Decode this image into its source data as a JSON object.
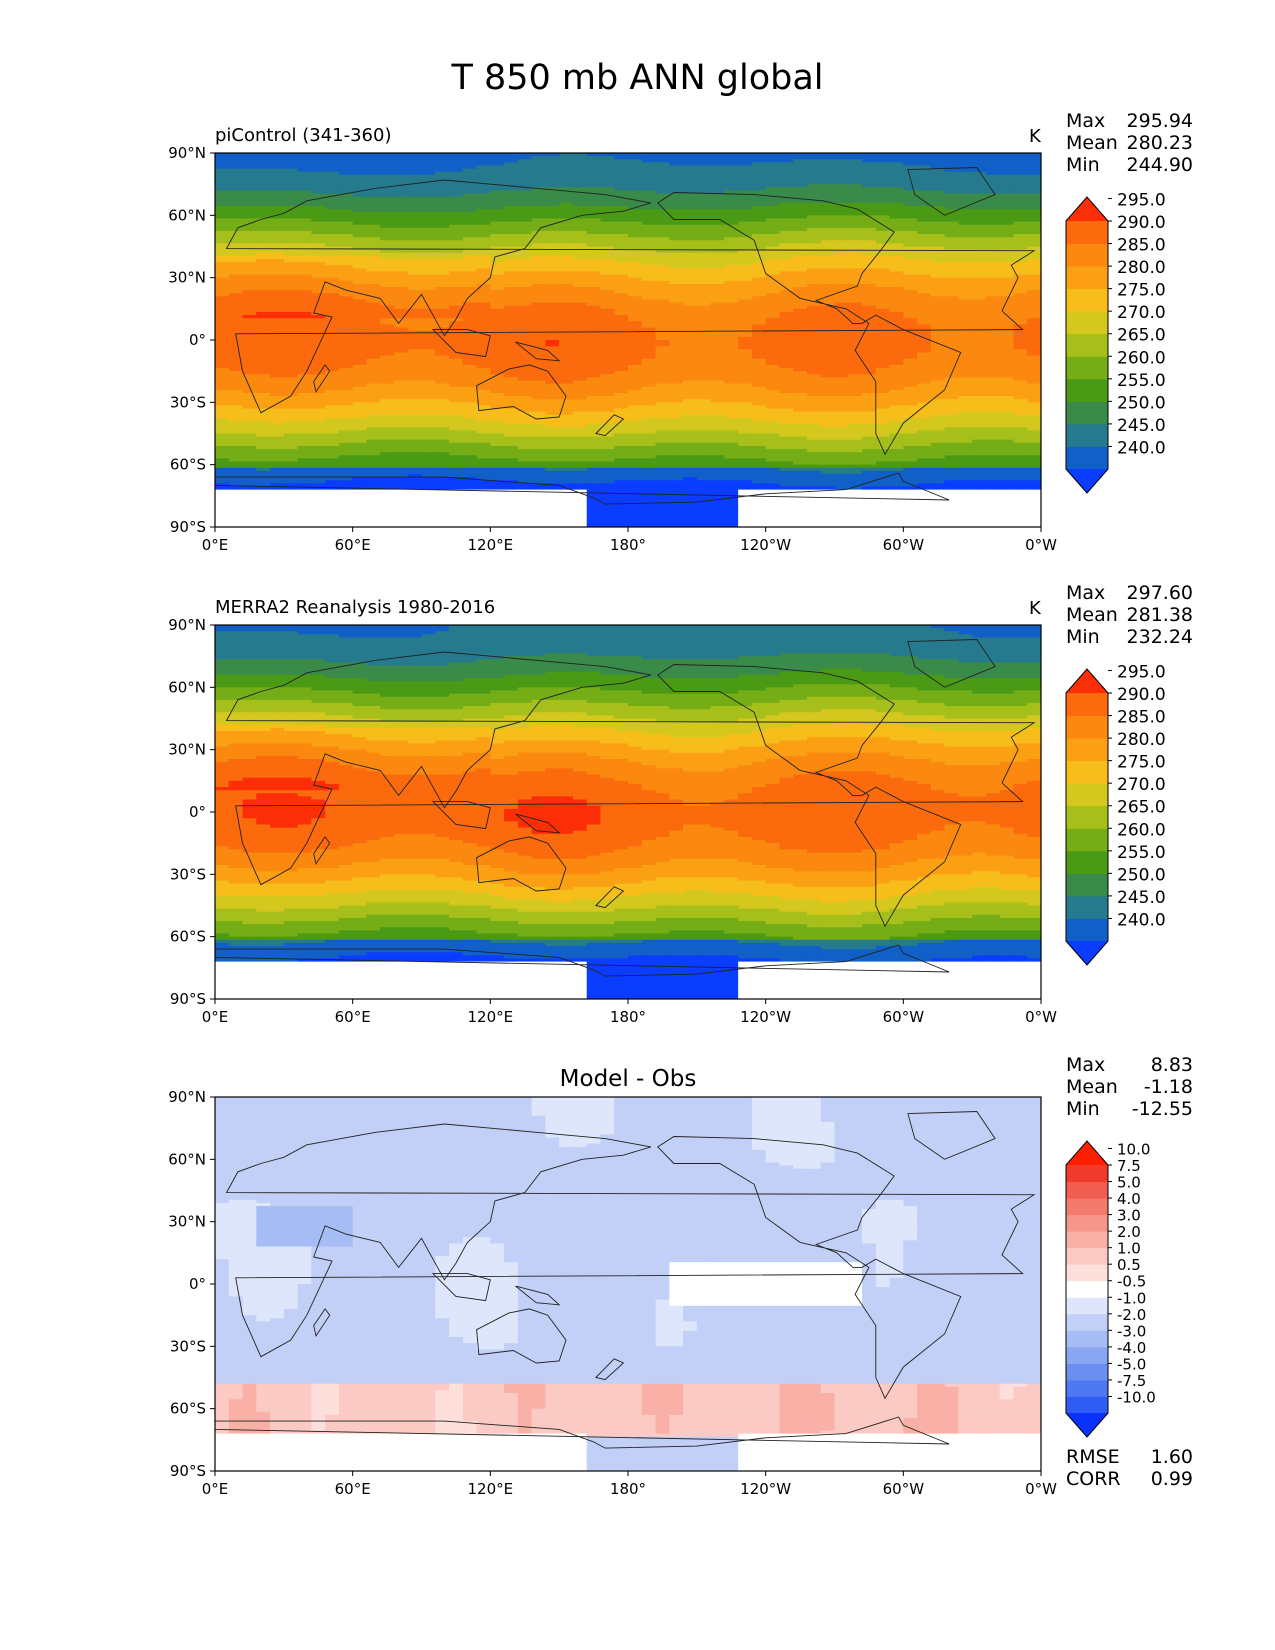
{
  "figure": {
    "title": "T 850 mb ANN global"
  },
  "axes": {
    "x_ticks": [
      "0°E",
      "60°E",
      "120°E",
      "180°",
      "120°W",
      "60°W",
      "0°W"
    ],
    "y_ticks": [
      "90°N",
      "60°N",
      "30°N",
      "0°",
      "30°S",
      "60°S",
      "90°S"
    ]
  },
  "chart_data": [
    {
      "type": "heatmap",
      "title": "piControl (341-360)",
      "units": "K",
      "stats": {
        "max_label": "Max",
        "max": "295.94",
        "mean_label": "Mean",
        "mean": "280.23",
        "min_label": "Min",
        "min": "244.90"
      },
      "colorbar_levels": [
        "240.0",
        "245.0",
        "250.0",
        "255.0",
        "260.0",
        "265.0",
        "270.0",
        "275.0",
        "280.0",
        "285.0",
        "290.0",
        "295.0"
      ],
      "colorbar_colors": [
        "#0a3dff",
        "#1060c8",
        "#267a8e",
        "#3a8a4a",
        "#4a9a16",
        "#74ad16",
        "#a6bf1a",
        "#d4c81f",
        "#f7be1b",
        "#fba012",
        "#fb880f",
        "#fb6a0c",
        "#fb2e08"
      ],
      "xlim": [
        0,
        360
      ],
      "ylim": [
        -90,
        90
      ]
    },
    {
      "type": "heatmap",
      "title": "MERRA2 Reanalysis 1980-2016",
      "units": "K",
      "stats": {
        "max_label": "Max",
        "max": "297.60",
        "mean_label": "Mean",
        "mean": "281.38",
        "min_label": "Min",
        "min": "232.24"
      },
      "colorbar_levels": [
        "240.0",
        "245.0",
        "250.0",
        "255.0",
        "260.0",
        "265.0",
        "270.0",
        "275.0",
        "280.0",
        "285.0",
        "290.0",
        "295.0"
      ],
      "colorbar_colors": [
        "#0a3dff",
        "#1060c8",
        "#267a8e",
        "#3a8a4a",
        "#4a9a16",
        "#74ad16",
        "#a6bf1a",
        "#d4c81f",
        "#f7be1b",
        "#fba012",
        "#fb880f",
        "#fb6a0c",
        "#fb2e08"
      ],
      "xlim": [
        0,
        360
      ],
      "ylim": [
        -90,
        90
      ]
    },
    {
      "type": "heatmap",
      "title": "Model - Obs",
      "stats": {
        "max_label": "Max",
        "max": "8.83",
        "mean_label": "Mean",
        "mean": "-1.18",
        "min_label": "Min",
        "min": "-12.55"
      },
      "colorbar_levels": [
        "-10.0",
        "-7.5",
        "-5.0",
        "-4.0",
        "-3.0",
        "-2.0",
        "-1.0",
        "-0.5",
        "0.5",
        "1.0",
        "2.0",
        "3.0",
        "4.0",
        "5.0",
        "7.5",
        "10.0"
      ],
      "colorbar_colors": [
        "#0a32ff",
        "#2f5cf5",
        "#4d78f2",
        "#6a8ff0",
        "#88a6f2",
        "#a6bcf4",
        "#c2d0f7",
        "#dde6fa",
        "#ffffff",
        "#fde0dc",
        "#fbcac4",
        "#f8b0a7",
        "#f6968b",
        "#f47a6e",
        "#f25d51",
        "#ef3a2c",
        "#ff1f00"
      ],
      "summary": {
        "rmse_label": "RMSE",
        "rmse": "1.60",
        "corr_label": "CORR",
        "corr": "0.99"
      },
      "xlim": [
        0,
        360
      ],
      "ylim": [
        -90,
        90
      ]
    }
  ]
}
